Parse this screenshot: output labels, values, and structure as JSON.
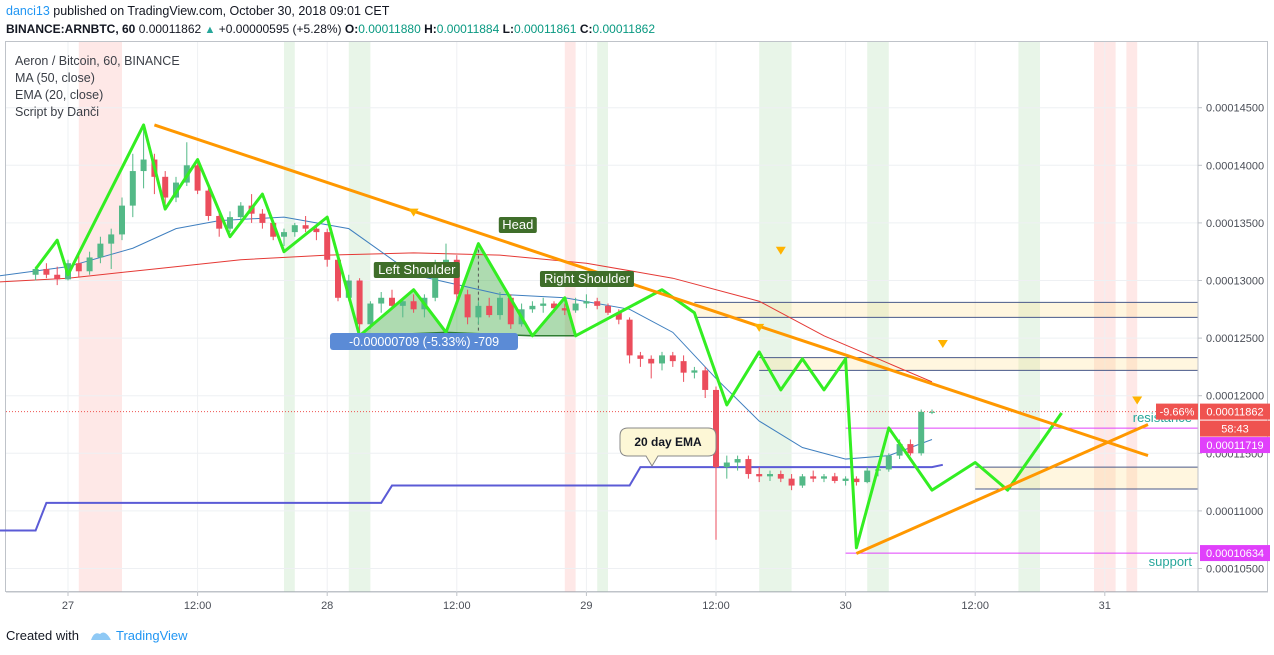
{
  "header": {
    "user": "danci13",
    "published_text": "published on TradingView.com, October 30, 2018 09:01 CET",
    "symbol_line": "BINANCE:ARNBTC, 60",
    "last": "0.00011862",
    "change": "+0.00000595 (+5.28%)",
    "o_label": "O:",
    "o": "0.00011880",
    "h_label": "H:",
    "h": "0.00011884",
    "l_label": "L:",
    "l": "0.00011861",
    "c_label": "C:",
    "c": "0.00011862"
  },
  "legend": {
    "title": "Aeron / Bitcoin, 60, BINANCE",
    "ma": "MA (50, close)",
    "ema": "EMA (20, close)",
    "script": "Script by Danči"
  },
  "footer": {
    "created": "Created with",
    "brand": "TradingView"
  },
  "chart_data": {
    "type": "candlestick",
    "y_axis": {
      "ticks": [
        0.000105,
        0.00011,
        0.000115,
        0.00012,
        0.000125,
        0.00013,
        0.000135,
        0.00014,
        0.000145
      ],
      "tick_labels": [
        "0.00010500",
        "0.00011000",
        "0.00011500",
        "0.00012000",
        "0.00012500",
        "0.00013000",
        "0.00013500",
        "0.00014000",
        "0.00014500"
      ],
      "range": [
        0.0001037,
        0.00015
      ]
    },
    "x_axis": {
      "labels": [
        "27",
        "12:00",
        "28",
        "12:00",
        "29",
        "12:00",
        "30",
        "12:00",
        "31"
      ],
      "range_hours": [
        -8,
        102
      ]
    },
    "price_tags": [
      {
        "label": "-9.66%",
        "value": "0.00011862",
        "color": "#ef5350"
      },
      {
        "label": "",
        "value": "58:43",
        "color": "#ef5350"
      },
      {
        "label": "",
        "value": "0.00011719",
        "color": "#e040fb"
      },
      {
        "label": "",
        "value": "0.00010634",
        "color": "#e040fb"
      }
    ],
    "annotations": {
      "head": "Head",
      "left_shoulder": "Left Shoulder",
      "right_shoulder": "Right Shoulder",
      "measure": "-0.00000709 (-5.33%) -709",
      "ema_callout": "20 day EMA",
      "resistance": "resistance",
      "support": "support"
    },
    "levels": {
      "resistance": 0.00011719,
      "support": 0.00010634,
      "last": 0.00011862
    },
    "candles": [
      [
        -3,
        0.0001305,
        0.0001312,
        0.00013,
        0.000131
      ],
      [
        -2,
        0.000131,
        0.0001315,
        0.0001302,
        0.0001305
      ],
      [
        -1,
        0.0001305,
        0.0001312,
        0.0001296,
        0.0001301
      ],
      [
        0,
        0.0001301,
        0.0001318,
        0.00013,
        0.0001315
      ],
      [
        1,
        0.0001315,
        0.0001322,
        0.0001303,
        0.0001308
      ],
      [
        2,
        0.0001308,
        0.0001325,
        0.0001305,
        0.000132
      ],
      [
        3,
        0.000132,
        0.0001338,
        0.0001315,
        0.0001332
      ],
      [
        4,
        0.0001332,
        0.0001345,
        0.000131,
        0.000134
      ],
      [
        5,
        0.000134,
        0.0001372,
        0.0001335,
        0.0001365
      ],
      [
        6,
        0.0001365,
        0.000141,
        0.0001355,
        0.0001395
      ],
      [
        7,
        0.0001395,
        0.0001432,
        0.000138,
        0.0001405
      ],
      [
        8,
        0.0001405,
        0.000141,
        0.0001375,
        0.000139
      ],
      [
        9,
        0.000139,
        0.0001395,
        0.0001362,
        0.0001372
      ],
      [
        10,
        0.0001372,
        0.000139,
        0.0001368,
        0.0001385
      ],
      [
        11,
        0.0001385,
        0.000142,
        0.0001382,
        0.00014
      ],
      [
        12,
        0.00014,
        0.0001405,
        0.0001375,
        0.0001378
      ],
      [
        13,
        0.0001378,
        0.000138,
        0.0001352,
        0.0001356
      ],
      [
        14,
        0.0001356,
        0.0001362,
        0.0001338,
        0.0001345
      ],
      [
        15,
        0.0001345,
        0.000136,
        0.0001342,
        0.0001355
      ],
      [
        16,
        0.0001355,
        0.0001368,
        0.0001352,
        0.0001365
      ],
      [
        17,
        0.0001365,
        0.0001375,
        0.000135,
        0.0001358
      ],
      [
        18,
        0.0001358,
        0.0001362,
        0.0001345,
        0.000135
      ],
      [
        19,
        0.000135,
        0.0001352,
        0.0001335,
        0.0001338
      ],
      [
        20,
        0.0001338,
        0.0001345,
        0.000133,
        0.0001342
      ],
      [
        21,
        0.0001342,
        0.000135,
        0.0001338,
        0.0001348
      ],
      [
        22,
        0.0001348,
        0.0001356,
        0.0001342,
        0.0001345
      ],
      [
        23,
        0.0001345,
        0.0001348,
        0.0001335,
        0.0001342
      ],
      [
        24,
        0.0001342,
        0.0001345,
        0.0001312,
        0.0001318
      ],
      [
        25,
        0.0001318,
        0.000132,
        0.0001282,
        0.0001285
      ],
      [
        26,
        0.0001285,
        0.0001305,
        0.0001282,
        0.00013
      ],
      [
        27,
        0.00013,
        0.0001302,
        0.0001255,
        0.0001262
      ],
      [
        28,
        0.0001262,
        0.0001282,
        0.0001258,
        0.000128
      ],
      [
        29,
        0.000128,
        0.000129,
        0.0001272,
        0.0001285
      ],
      [
        30,
        0.0001285,
        0.0001292,
        0.0001275,
        0.0001278
      ],
      [
        31,
        0.0001278,
        0.0001285,
        0.0001268,
        0.0001282
      ],
      [
        32,
        0.0001282,
        0.0001288,
        0.0001272,
        0.0001275
      ],
      [
        33,
        0.0001275,
        0.0001288,
        0.0001268,
        0.0001285
      ],
      [
        34,
        0.0001285,
        0.0001318,
        0.0001282,
        0.0001312
      ],
      [
        35,
        0.0001312,
        0.0001332,
        0.0001305,
        0.0001318
      ],
      [
        36,
        0.0001318,
        0.0001322,
        0.000128,
        0.0001288
      ],
      [
        37,
        0.0001288,
        0.0001292,
        0.0001262,
        0.0001268
      ],
      [
        38,
        0.0001268,
        0.0001282,
        0.0001262,
        0.0001278
      ],
      [
        39,
        0.0001278,
        0.0001285,
        0.0001268,
        0.000127
      ],
      [
        40,
        0.000127,
        0.000129,
        0.0001266,
        0.0001285
      ],
      [
        41,
        0.0001285,
        0.0001288,
        0.0001258,
        0.0001262
      ],
      [
        42,
        0.0001262,
        0.000128,
        0.000126,
        0.0001275
      ],
      [
        43,
        0.0001275,
        0.0001282,
        0.0001272,
        0.0001278
      ],
      [
        44,
        0.0001278,
        0.0001285,
        0.0001272,
        0.000128
      ],
      [
        45,
        0.000128,
        0.0001282,
        0.0001272,
        0.0001276
      ],
      [
        46,
        0.0001276,
        0.000128,
        0.000127,
        0.0001274
      ],
      [
        47,
        0.0001274,
        0.0001285,
        0.0001272,
        0.000128
      ],
      [
        48,
        0.000128,
        0.0001288,
        0.0001276,
        0.0001282
      ],
      [
        49,
        0.0001282,
        0.0001285,
        0.0001275,
        0.0001278
      ],
      [
        50,
        0.0001278,
        0.000128,
        0.000127,
        0.0001272
      ],
      [
        51,
        0.0001272,
        0.0001275,
        0.0001262,
        0.0001266
      ],
      [
        52,
        0.0001266,
        0.0001268,
        0.0001228,
        0.0001235
      ],
      [
        53,
        0.0001235,
        0.0001238,
        0.0001225,
        0.0001232
      ],
      [
        54,
        0.0001232,
        0.0001235,
        0.0001215,
        0.0001228
      ],
      [
        55,
        0.0001228,
        0.0001238,
        0.0001222,
        0.0001235
      ],
      [
        56,
        0.0001235,
        0.0001238,
        0.0001225,
        0.000123
      ],
      [
        57,
        0.000123,
        0.0001235,
        0.0001212,
        0.000122
      ],
      [
        58,
        0.000122,
        0.0001225,
        0.0001215,
        0.0001222
      ],
      [
        59,
        0.0001222,
        0.0001225,
        0.0001198,
        0.0001205
      ],
      [
        60,
        0.0001205,
        0.0001208,
        0.0001075,
        0.0001138
      ],
      [
        61,
        0.0001138,
        0.0001148,
        0.0001128,
        0.0001142
      ],
      [
        62,
        0.0001142,
        0.0001148,
        0.0001135,
        0.0001145
      ],
      [
        63,
        0.0001145,
        0.0001148,
        0.0001128,
        0.0001132
      ],
      [
        64,
        0.0001132,
        0.0001138,
        0.0001125,
        0.000113
      ],
      [
        65,
        0.000113,
        0.0001135,
        0.0001126,
        0.0001132
      ],
      [
        66,
        0.0001132,
        0.0001135,
        0.0001125,
        0.0001128
      ],
      [
        67,
        0.0001128,
        0.0001132,
        0.0001118,
        0.0001122
      ],
      [
        68,
        0.0001122,
        0.0001132,
        0.000112,
        0.000113
      ],
      [
        69,
        0.000113,
        0.0001135,
        0.0001125,
        0.0001128
      ],
      [
        70,
        0.0001128,
        0.0001132,
        0.0001125,
        0.000113
      ],
      [
        71,
        0.000113,
        0.0001133,
        0.0001124,
        0.0001126
      ],
      [
        72,
        0.0001126,
        0.000113,
        0.0001122,
        0.0001128
      ],
      [
        73,
        0.0001128,
        0.000113,
        0.0001122,
        0.0001125
      ],
      [
        74,
        0.0001125,
        0.0001138,
        0.0001124,
        0.0001135
      ],
      [
        75,
        0.0001135,
        0.0001138,
        0.000113,
        0.0001136
      ],
      [
        76,
        0.0001136,
        0.000115,
        0.0001134,
        0.0001148
      ],
      [
        77,
        0.0001148,
        0.0001162,
        0.0001145,
        0.0001158
      ],
      [
        78,
        0.0001158,
        0.0001162,
        0.0001148,
        0.000115
      ],
      [
        79,
        0.000115,
        0.0001188,
        0.0001148,
        0.0001186
      ],
      [
        80,
        0.0001186,
        0.0001188,
        0.0001184,
        0.0001186
      ]
    ],
    "ma50": [
      [
        -8,
        0.0001298
      ],
      [
        0,
        0.0001302
      ],
      [
        8,
        0.000131
      ],
      [
        16,
        0.0001318
      ],
      [
        24,
        0.0001322
      ],
      [
        32,
        0.0001324
      ],
      [
        40,
        0.0001322
      ],
      [
        48,
        0.0001315
      ],
      [
        56,
        0.0001302
      ],
      [
        64,
        0.0001282
      ],
      [
        70,
        0.0001252
      ],
      [
        76,
        0.0001228
      ],
      [
        80,
        0.0001212
      ]
    ],
    "ema20": [
      [
        -8,
        0.0001302
      ],
      [
        0,
        0.0001312
      ],
      [
        6,
        0.0001328
      ],
      [
        10,
        0.0001345
      ],
      [
        14,
        0.0001352
      ],
      [
        20,
        0.0001355
      ],
      [
        26,
        0.0001345
      ],
      [
        32,
        0.0001305
      ],
      [
        40,
        0.0001288
      ],
      [
        46,
        0.0001285
      ],
      [
        52,
        0.0001275
      ],
      [
        56,
        0.0001255
      ],
      [
        60,
        0.0001215
      ],
      [
        64,
        0.0001178
      ],
      [
        68,
        0.0001155
      ],
      [
        72,
        0.0001145
      ],
      [
        76,
        0.0001148
      ],
      [
        80,
        0.0001162
      ]
    ],
    "script_line": [
      [
        -8,
        0.0001083
      ],
      [
        -3,
        0.0001083
      ],
      [
        -2,
        0.0001107
      ],
      [
        12,
        0.0001107
      ],
      [
        16,
        0.0001107
      ],
      [
        29,
        0.0001107
      ],
      [
        30,
        0.0001122
      ],
      [
        52,
        0.0001122
      ],
      [
        53,
        0.0001138
      ],
      [
        80,
        0.0001138
      ],
      [
        81,
        0.000114
      ]
    ],
    "zigzag": [
      [
        -3,
        0.000131
      ],
      [
        -1,
        0.0001335
      ],
      [
        0,
        0.0001305
      ],
      [
        7,
        0.0001435
      ],
      [
        9,
        0.0001362
      ],
      [
        12,
        0.0001405
      ],
      [
        15,
        0.0001338
      ],
      [
        18,
        0.0001375
      ],
      [
        20,
        0.0001325
      ],
      [
        24,
        0.0001355
      ],
      [
        27,
        0.0001252
      ],
      [
        32,
        0.0001292
      ],
      [
        35,
        0.0001255
      ],
      [
        38,
        0.0001332
      ],
      [
        43,
        0.0001252
      ],
      [
        46,
        0.0001285
      ],
      [
        47,
        0.0001252
      ],
      [
        55,
        0.0001292
      ],
      [
        58,
        0.0001272
      ],
      [
        61,
        0.0001192
      ],
      [
        64,
        0.0001238
      ],
      [
        66,
        0.0001205
      ],
      [
        68,
        0.0001232
      ],
      [
        70,
        0.0001205
      ],
      [
        72,
        0.0001232
      ],
      [
        73,
        0.0001068
      ],
      [
        76,
        0.0001172
      ],
      [
        80,
        0.0001118
      ],
      [
        84,
        0.0001142
      ],
      [
        87,
        0.0001118
      ],
      [
        92,
        0.0001185
      ]
    ],
    "trendlines": [
      {
        "name": "descending",
        "points": [
          [
            8,
            0.0001435
          ],
          [
            100,
            0.0001148
          ]
        ],
        "color": "#ff9800"
      },
      {
        "name": "ascending",
        "points": [
          [
            73,
            0.0001063
          ],
          [
            100,
            0.0001175
          ]
        ],
        "color": "#ff9800"
      }
    ],
    "shade_bands": [
      {
        "x0": 1,
        "x1": 5,
        "color": "red"
      },
      {
        "x0": 20,
        "x1": 21,
        "color": "green"
      },
      {
        "x0": 26,
        "x1": 28,
        "color": "green"
      },
      {
        "x0": 46,
        "x1": 47,
        "color": "red"
      },
      {
        "x0": 49,
        "x1": 50,
        "color": "green"
      },
      {
        "x0": 64,
        "x1": 67,
        "color": "green"
      },
      {
        "x0": 74,
        "x1": 76,
        "color": "green"
      },
      {
        "x0": 88,
        "x1": 90,
        "color": "green"
      },
      {
        "x0": 95,
        "x1": 97,
        "color": "red"
      },
      {
        "x0": 98,
        "x1": 99,
        "color": "red"
      }
    ],
    "zones": [
      {
        "x0": 58,
        "x1": 121,
        "y0": 0.0001268,
        "y1": 0.0001281
      },
      {
        "x0": 64,
        "x1": 121,
        "y0": 0.0001222,
        "y1": 0.0001233
      },
      {
        "x0": 84,
        "x1": 121,
        "y0": 0.0001119,
        "y1": 0.0001138
      }
    ],
    "signals": [
      [
        32,
        0.0001358
      ],
      [
        64,
        0.0001258
      ],
      [
        66,
        0.0001325
      ],
      [
        81,
        0.0001244
      ],
      [
        99,
        0.0001195
      ]
    ],
    "grid": true
  }
}
